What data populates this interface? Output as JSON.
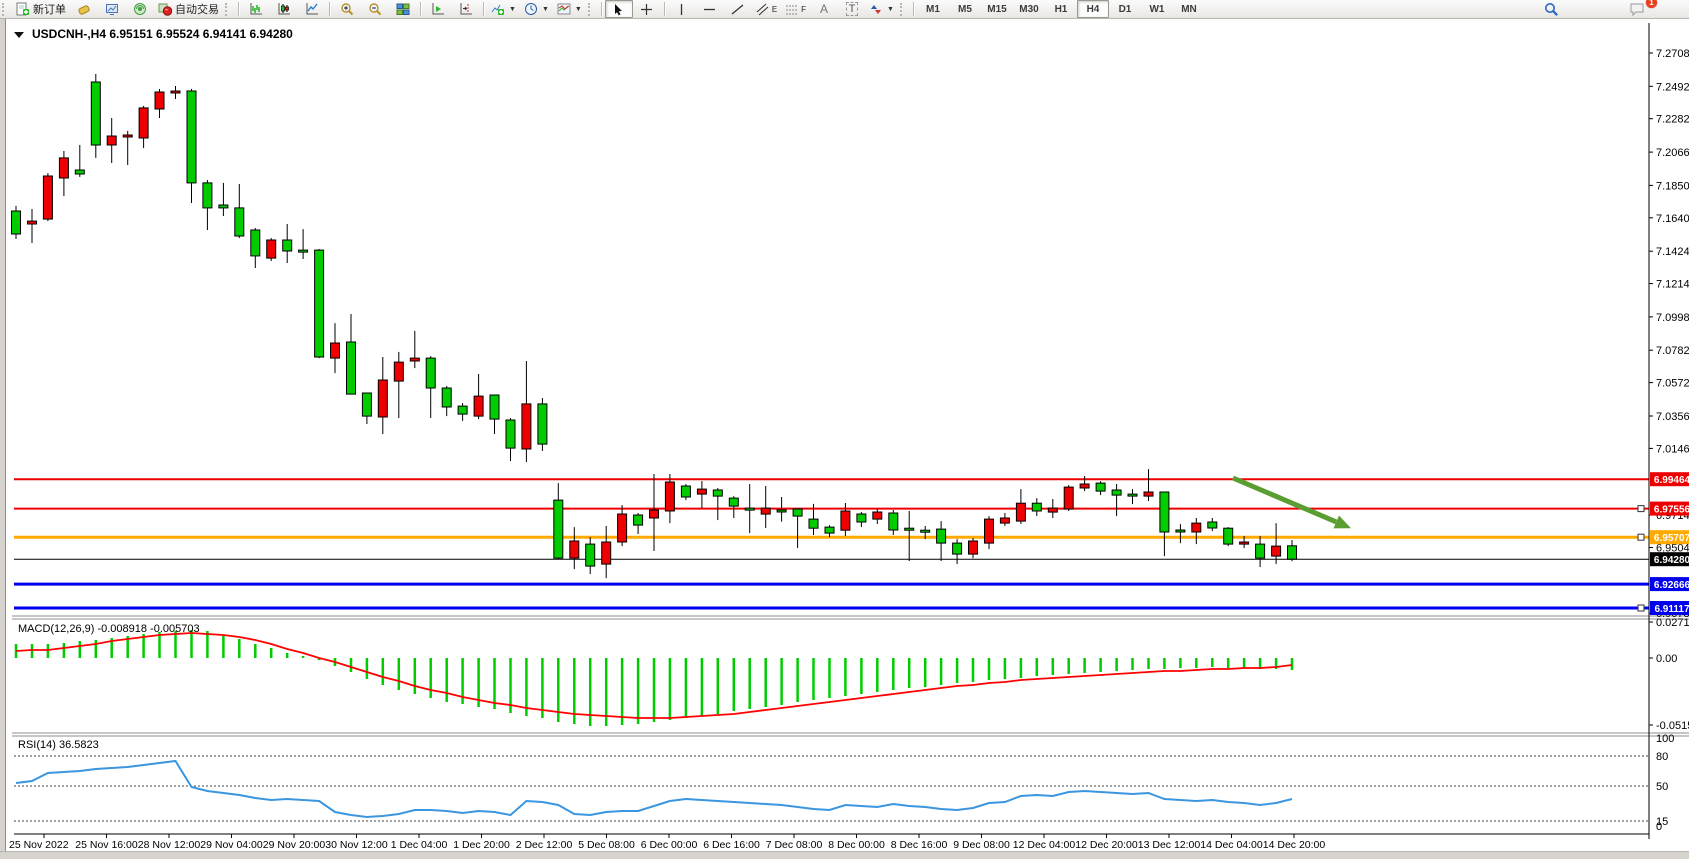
{
  "toolbar": {
    "new_order_label": "新订单",
    "autotrade_label": "自动交易",
    "channel_letter": "E",
    "fibo_letter": "F",
    "text_letter": "A",
    "label_letter": "T",
    "timeframes": [
      "M1",
      "M5",
      "M15",
      "M30",
      "H1",
      "H4",
      "D1",
      "W1",
      "MN"
    ],
    "active_timeframe": "H4",
    "notifications_badge": "1"
  },
  "chart_data": {
    "type": "candlestick-with-indicators",
    "symbol": "USDCNH-",
    "period": "H4",
    "current_bar": {
      "open": "6.95151",
      "high": "6.95524",
      "low": "6.94141",
      "close": "6.94280"
    },
    "colors": {
      "up_candle": "#ee0000",
      "down_candle": "#00cc00",
      "candle_outline": "#000000",
      "macd_histogram": "#00cc00",
      "macd_signal": "#ff0000",
      "rsi_line": "#3b96e0",
      "arrow": "#5a9e32",
      "resistance_line": "#ee0000",
      "pivot_line": "#ffaa00",
      "support_line": "#0000ee",
      "current_price_line": "#000000"
    },
    "price_axis_ticks": [
      "7.27080",
      "7.24920",
      "7.22820",
      "7.20660",
      "7.18500",
      "7.16400",
      "7.14240",
      "7.12140",
      "7.09980",
      "7.07820",
      "7.05720",
      "7.03560",
      "7.01460",
      "6.97140",
      "6.95040",
      "6.90780"
    ],
    "horizontal_lines": [
      {
        "price": "6.99464",
        "color": "#ee0000",
        "width": 2,
        "handle": false
      },
      {
        "price": "6.97556",
        "color": "#ee0000",
        "width": 2,
        "handle": true
      },
      {
        "price": "6.95707",
        "color": "#ffaa00",
        "width": 3,
        "handle": true
      },
      {
        "price": "6.94280",
        "color": "#000000",
        "width": 1,
        "handle": false,
        "current": true
      },
      {
        "price": "6.92666",
        "color": "#0000ee",
        "width": 3,
        "handle": false
      },
      {
        "price": "6.91117",
        "color": "#0000ee",
        "width": 3,
        "handle": true
      }
    ],
    "trend_arrow": {
      "from_bar": 76.3,
      "from_price": 6.9954,
      "to_bar": 83.7,
      "to_price": 6.9629
    },
    "candles": [
      [
        7.1684,
        7.1717,
        7.1503,
        7.1535,
        "d"
      ],
      [
        7.16,
        7.1697,
        7.1477,
        7.1619,
        "u"
      ],
      [
        7.1632,
        7.193,
        7.1619,
        7.1911,
        "u"
      ],
      [
        7.1898,
        7.2073,
        7.1781,
        7.2028,
        "u"
      ],
      [
        7.195,
        7.2112,
        7.1905,
        7.1924,
        "d"
      ],
      [
        7.252,
        7.2572,
        7.2028,
        7.2112,
        "d"
      ],
      [
        7.2112,
        7.2287,
        7.1995,
        7.217,
        "u"
      ],
      [
        7.2164,
        7.2203,
        7.1982,
        7.2177,
        "u"
      ],
      [
        7.2157,
        7.2365,
        7.2092,
        7.2352,
        "u"
      ],
      [
        7.2345,
        7.2475,
        7.2287,
        7.2455,
        "u"
      ],
      [
        7.2449,
        7.2494,
        7.241,
        7.2462,
        "u"
      ],
      [
        7.2462,
        7.2475,
        7.1736,
        7.1866,
        "d"
      ],
      [
        7.1866,
        7.1885,
        7.1561,
        7.1704,
        "d"
      ],
      [
        7.1723,
        7.1866,
        7.1652,
        7.1704,
        "d"
      ],
      [
        7.1704,
        7.1859,
        7.1509,
        7.1522,
        "d"
      ],
      [
        7.1561,
        7.1574,
        7.1315,
        7.1393,
        "d"
      ],
      [
        7.1379,
        7.1509,
        7.136,
        7.1496,
        "u"
      ],
      [
        7.1496,
        7.16,
        7.1347,
        7.1425,
        "d"
      ],
      [
        7.1431,
        7.1567,
        7.1373,
        7.1418,
        "d"
      ],
      [
        7.1431,
        7.1438,
        7.0731,
        7.0738,
        "d"
      ],
      [
        7.0731,
        7.0958,
        7.0634,
        7.0829,
        "u"
      ],
      [
        7.0835,
        7.1017,
        7.0498,
        7.0498,
        "d"
      ],
      [
        7.0505,
        7.0505,
        7.0304,
        7.0355,
        "d"
      ],
      [
        7.0349,
        7.0738,
        7.0239,
        7.0589,
        "u"
      ],
      [
        7.0582,
        7.0771,
        7.0343,
        7.0705,
        "u"
      ],
      [
        7.0712,
        7.0907,
        7.0666,
        7.0731,
        "u"
      ],
      [
        7.0731,
        7.0744,
        7.0343,
        7.0537,
        "d"
      ],
      [
        7.0537,
        7.055,
        7.0355,
        7.0414,
        "d"
      ],
      [
        7.042,
        7.044,
        7.0324,
        7.0368,
        "d"
      ],
      [
        7.0355,
        7.0628,
        7.0336,
        7.0485,
        "u"
      ],
      [
        7.0492,
        7.0492,
        7.0239,
        7.0336,
        "d"
      ],
      [
        7.033,
        7.0343,
        7.0064,
        7.0148,
        "d"
      ],
      [
        7.0142,
        7.0712,
        7.0057,
        7.0434,
        "u"
      ],
      [
        7.0434,
        7.0472,
        7.0129,
        7.0174,
        "d"
      ],
      [
        6.9811,
        6.9921,
        6.9429,
        6.9435,
        "d"
      ],
      [
        6.9435,
        6.9636,
        6.9364,
        6.9546,
        "u"
      ],
      [
        6.9526,
        6.9571,
        6.9331,
        6.9383,
        "d"
      ],
      [
        6.9396,
        6.9643,
        6.9305,
        6.9539,
        "u"
      ],
      [
        6.9539,
        6.9779,
        6.9513,
        6.9721,
        "u"
      ],
      [
        6.9714,
        6.9727,
        6.9591,
        6.9649,
        "d"
      ],
      [
        6.9695,
        6.998,
        6.9481,
        6.9747,
        "u"
      ],
      [
        6.974,
        6.998,
        6.9662,
        6.9928,
        "u"
      ],
      [
        6.9902,
        6.9915,
        6.9811,
        6.9831,
        "d"
      ],
      [
        6.985,
        6.9934,
        6.9759,
        6.9882,
        "u"
      ],
      [
        6.9876,
        6.9889,
        6.9681,
        6.9837,
        "d"
      ],
      [
        6.9824,
        6.9837,
        6.9695,
        6.9772,
        "d"
      ],
      [
        6.9759,
        6.9915,
        6.9597,
        6.9746,
        "d"
      ],
      [
        6.972,
        6.9902,
        6.963,
        6.9759,
        "u"
      ],
      [
        6.9747,
        6.9831,
        6.9671,
        6.9734,
        "d"
      ],
      [
        6.9753,
        6.9753,
        6.95,
        6.9707,
        "d"
      ],
      [
        6.9688,
        6.9786,
        6.9585,
        6.9629,
        "d"
      ],
      [
        6.9636,
        6.9649,
        6.9571,
        6.9597,
        "d"
      ],
      [
        6.9616,
        6.9792,
        6.9578,
        6.974,
        "u"
      ],
      [
        6.9721,
        6.9734,
        6.9636,
        6.9669,
        "d"
      ],
      [
        6.9688,
        6.9753,
        6.9656,
        6.9734,
        "u"
      ],
      [
        6.9727,
        6.9747,
        6.9585,
        6.9617,
        "d"
      ],
      [
        6.9629,
        6.974,
        6.9416,
        6.9616,
        "d"
      ],
      [
        6.9616,
        6.9643,
        6.9558,
        6.9603,
        "d"
      ],
      [
        6.9623,
        6.9675,
        6.9416,
        6.9532,
        "d"
      ],
      [
        6.9532,
        6.9558,
        6.9396,
        6.9461,
        "d"
      ],
      [
        6.9461,
        6.9565,
        6.9435,
        6.9546,
        "u"
      ],
      [
        6.9532,
        6.9707,
        6.9493,
        6.9688,
        "u"
      ],
      [
        6.9662,
        6.9727,
        6.9643,
        6.9695,
        "u"
      ],
      [
        6.9675,
        6.9882,
        6.9656,
        6.9791,
        "u"
      ],
      [
        6.9791,
        6.9824,
        6.9707,
        6.974,
        "d"
      ],
      [
        6.9733,
        6.9818,
        6.9695,
        6.9759,
        "u"
      ],
      [
        6.9753,
        6.9908,
        6.974,
        6.9895,
        "u"
      ],
      [
        6.9889,
        6.9967,
        6.9869,
        6.9915,
        "u"
      ],
      [
        6.9921,
        6.9934,
        6.9843,
        6.9869,
        "d"
      ],
      [
        6.9876,
        6.9915,
        6.9707,
        6.9843,
        "d"
      ],
      [
        6.985,
        6.9882,
        6.9785,
        6.9837,
        "d"
      ],
      [
        6.9837,
        7.0012,
        6.9805,
        6.9863,
        "u"
      ],
      [
        6.9863,
        6.9863,
        6.9448,
        6.9604,
        "d"
      ],
      [
        6.9617,
        6.9655,
        6.9532,
        6.9604,
        "d"
      ],
      [
        6.9604,
        6.9695,
        6.9526,
        6.9662,
        "u"
      ],
      [
        6.9669,
        6.9695,
        6.961,
        6.963,
        "d"
      ],
      [
        6.9629,
        6.9636,
        6.9513,
        6.9526,
        "d"
      ],
      [
        6.9526,
        6.9578,
        6.95,
        6.9539,
        "u"
      ],
      [
        6.9526,
        6.9578,
        6.9377,
        6.9435,
        "d"
      ],
      [
        6.9448,
        6.9662,
        6.9396,
        6.9513,
        "u"
      ],
      [
        6.9515,
        6.9552,
        6.9414,
        6.9428,
        "d"
      ]
    ],
    "macd": {
      "label": "MACD(12,26,9)",
      "main_value": "-0.008918",
      "signal_value": "-0.005703",
      "axis_labels": [
        "0.027103",
        "0.00",
        "-0.051546"
      ],
      "histogram": [
        0.0105,
        0.011,
        0.0108,
        0.0118,
        0.0128,
        0.014,
        0.0155,
        0.017,
        0.0185,
        0.0198,
        0.0208,
        0.0215,
        0.0205,
        0.0178,
        0.0148,
        0.011,
        0.0075,
        0.004,
        0.0012,
        -0.0015,
        -0.006,
        -0.011,
        -0.016,
        -0.0205,
        -0.0245,
        -0.028,
        -0.031,
        -0.0335,
        -0.0355,
        -0.0375,
        -0.0395,
        -0.042,
        -0.0445,
        -0.0465,
        -0.049,
        -0.0505,
        -0.052,
        -0.0522,
        -0.0515,
        -0.0505,
        -0.0492,
        -0.0478,
        -0.0462,
        -0.0445,
        -0.0428,
        -0.041,
        -0.0392,
        -0.0375,
        -0.0358,
        -0.0342,
        -0.0325,
        -0.0308,
        -0.0292,
        -0.0277,
        -0.0262,
        -0.0248,
        -0.0234,
        -0.022,
        -0.0207,
        -0.0195,
        -0.0183,
        -0.0172,
        -0.0161,
        -0.0151,
        -0.0141,
        -0.0132,
        -0.0123,
        -0.0115,
        -0.0107,
        -0.01,
        -0.0094,
        -0.0088,
        -0.0083,
        -0.0078,
        -0.0074,
        -0.0071,
        -0.0075,
        -0.008,
        -0.0086,
        -0.0088,
        -0.0089
      ],
      "signal": [
        0.0053,
        0.0058,
        0.0065,
        0.0075,
        0.009,
        0.0108,
        0.0128,
        0.0148,
        0.0165,
        0.0178,
        0.0186,
        0.019,
        0.0188,
        0.0178,
        0.016,
        0.0135,
        0.0105,
        0.0072,
        0.0038,
        0.0003,
        -0.0033,
        -0.007,
        -0.0108,
        -0.0145,
        -0.018,
        -0.0213,
        -0.0244,
        -0.0272,
        -0.0298,
        -0.0322,
        -0.0344,
        -0.0364,
        -0.0382,
        -0.0398,
        -0.0413,
        -0.0427,
        -0.0439,
        -0.0448,
        -0.0455,
        -0.0459,
        -0.046,
        -0.0459,
        -0.0455,
        -0.0448,
        -0.0439,
        -0.0428,
        -0.0415,
        -0.0401,
        -0.0386,
        -0.037,
        -0.0354,
        -0.0338,
        -0.0322,
        -0.0306,
        -0.029,
        -0.0275,
        -0.026,
        -0.0246,
        -0.0232,
        -0.0219,
        -0.0207,
        -0.0195,
        -0.0184,
        -0.0173,
        -0.0163,
        -0.0154,
        -0.0145,
        -0.0137,
        -0.0129,
        -0.0122,
        -0.0115,
        -0.0109,
        -0.0103,
        -0.0098,
        -0.0093,
        -0.0088,
        -0.0084,
        -0.008,
        -0.0076,
        -0.0071,
        -0.0057
      ]
    },
    "rsi": {
      "label": "RSI(14)",
      "value": "36.5823",
      "axis_labels": [
        "100",
        "80",
        "50",
        "15",
        "0"
      ],
      "dashed_levels": [
        80,
        50,
        15
      ],
      "values": [
        53,
        55,
        63,
        64,
        65,
        67,
        68,
        69,
        71,
        73,
        75,
        49,
        45,
        43,
        41,
        38,
        36,
        37,
        36,
        35,
        24,
        21,
        19,
        20,
        22,
        26,
        26,
        25,
        23,
        25,
        24,
        21,
        35,
        34,
        31,
        22,
        21,
        24,
        25,
        25,
        30,
        35,
        37,
        36,
        35,
        34,
        33,
        32,
        31,
        29,
        27,
        26,
        31,
        30,
        29,
        32,
        30,
        29,
        27,
        26,
        28,
        33,
        34,
        40,
        41,
        40,
        44,
        45,
        44,
        43,
        42,
        43,
        37,
        36,
        35,
        36,
        34,
        33,
        31,
        33,
        36.58
      ]
    },
    "time_axis_labels": [
      "25 Nov 2022",
      "25 Nov 16:00",
      "28 Nov 12:00",
      "29 Nov 04:00",
      "29 Nov 20:00",
      "30 Nov 12:00",
      "1 Dec 04:00",
      "1 Dec 20:00",
      "2 Dec 12:00",
      "5 Dec 08:00",
      "6 Dec 00:00",
      "6 Dec 16:00",
      "7 Dec 08:00",
      "8 Dec 00:00",
      "8 Dec 16:00",
      "9 Dec 08:00",
      "12 Dec 04:00",
      "12 Dec 20:00",
      "13 Dec 12:00",
      "14 Dec 04:00",
      "14 Dec 20:00"
    ]
  }
}
